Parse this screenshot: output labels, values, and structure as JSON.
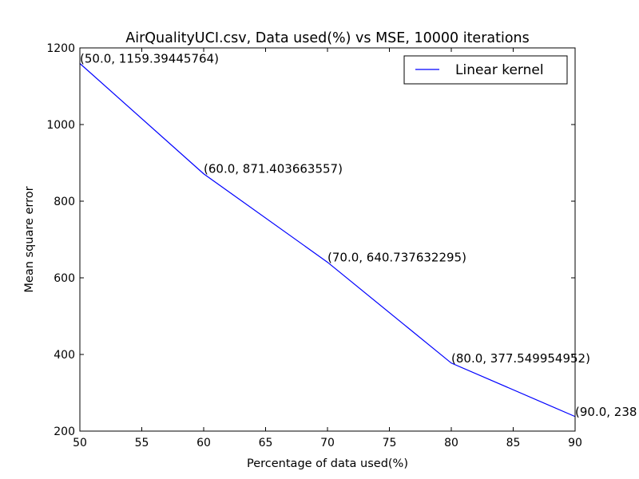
{
  "chart_data": {
    "type": "line",
    "title": "AirQualityUCI.csv, Data used(%) vs MSE, 10000 iterations",
    "xlabel": "Percentage of data used(%)",
    "ylabel": "Mean square error",
    "xlim": [
      50,
      90
    ],
    "ylim": [
      200,
      1200
    ],
    "xticks": [
      50,
      55,
      60,
      65,
      70,
      75,
      80,
      85,
      90
    ],
    "yticks": [
      200,
      400,
      600,
      800,
      1000,
      1200
    ],
    "grid": false,
    "legend_position": "top-right",
    "series": [
      {
        "name": "Linear kernel",
        "color": "#0000ff",
        "x": [
          50.0,
          60.0,
          70.0,
          80.0,
          90.0
        ],
        "y": [
          1159.39445764,
          871.403663557,
          640.737632295,
          377.549954952,
          238.0
        ]
      }
    ],
    "annotations": [
      "(50.0, 1159.39445764)",
      "(60.0, 871.403663557)",
      "(70.0, 640.737632295)",
      "(80.0, 377.549954952)",
      "(90.0, 238"
    ]
  }
}
